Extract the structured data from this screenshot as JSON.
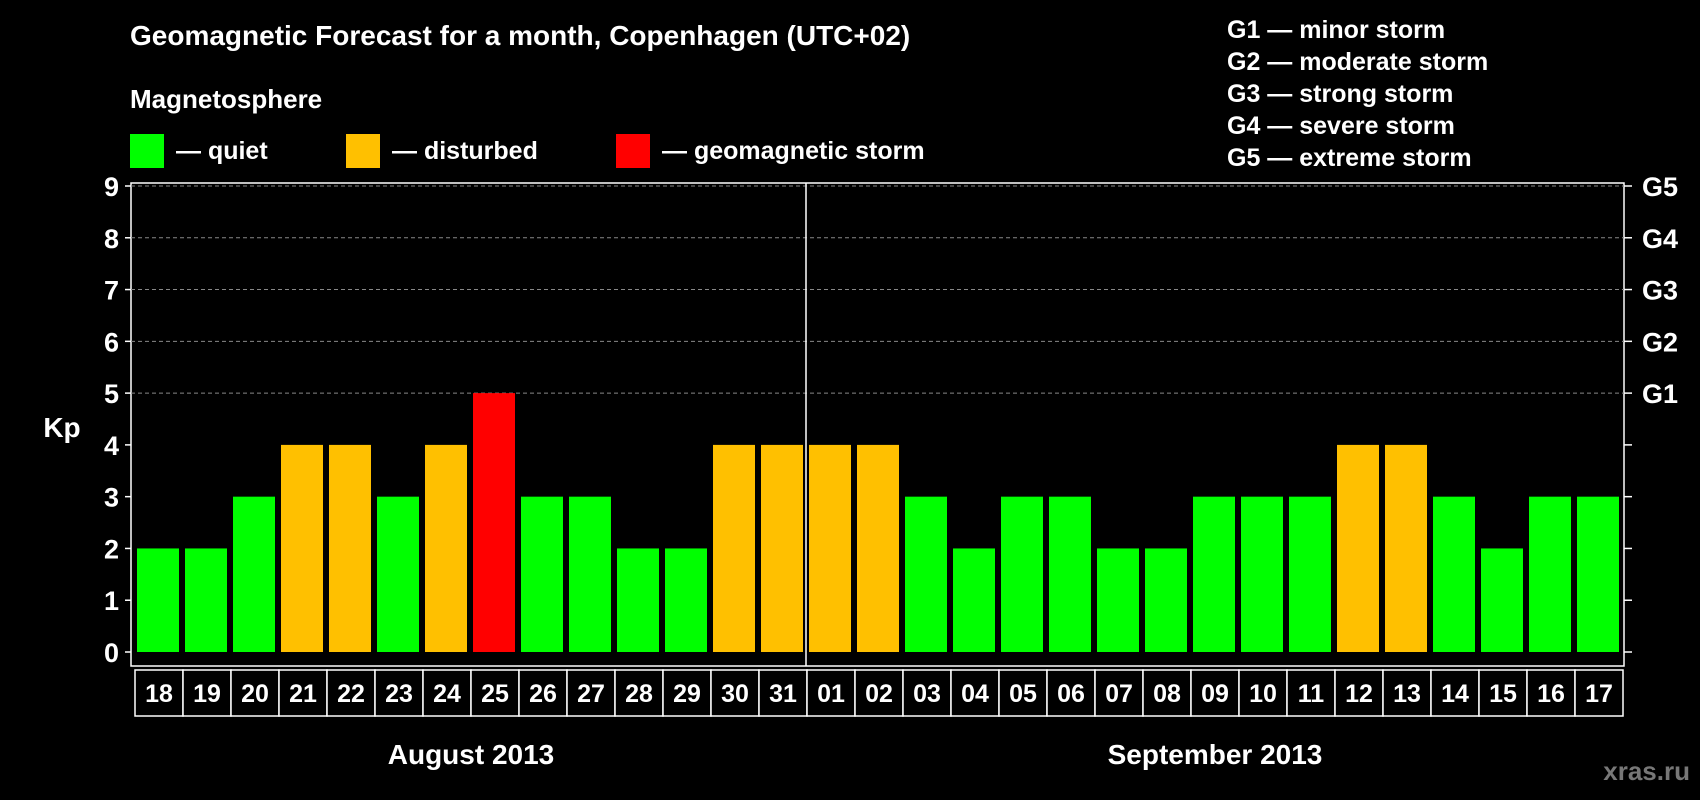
{
  "title": "Geomagnetic Forecast for a month, Copenhagen (UTC+02)",
  "legend": {
    "heading": "Magnetosphere",
    "items": [
      {
        "label": "— quiet",
        "color": "#00ff00"
      },
      {
        "label": "— disturbed",
        "color": "#ffc000"
      },
      {
        "label": "— geomagnetic storm",
        "color": "#ff0000"
      }
    ]
  },
  "g_scale_legend": [
    "G1 — minor storm",
    "G2 — moderate storm",
    "G3 — strong storm",
    "G4 — severe storm",
    "G5 — extreme storm"
  ],
  "watermark": "xras.ru",
  "chart_data": {
    "type": "bar",
    "ylabel": "Kp",
    "ylim": [
      0,
      9
    ],
    "yticks": [
      "0",
      "1",
      "2",
      "3",
      "4",
      "5",
      "6",
      "7",
      "8",
      "9"
    ],
    "right_ticks": [
      {
        "kp": 5,
        "label": "G1"
      },
      {
        "kp": 6,
        "label": "G2"
      },
      {
        "kp": 7,
        "label": "G3"
      },
      {
        "kp": 8,
        "label": "G4"
      },
      {
        "kp": 9,
        "label": "G5"
      }
    ],
    "categories": [
      "18",
      "19",
      "20",
      "21",
      "22",
      "23",
      "24",
      "25",
      "26",
      "27",
      "28",
      "29",
      "30",
      "31",
      "01",
      "02",
      "03",
      "04",
      "05",
      "06",
      "07",
      "08",
      "09",
      "10",
      "11",
      "12",
      "13",
      "14",
      "15",
      "16",
      "17"
    ],
    "values": [
      2,
      2,
      3,
      4,
      4,
      3,
      4,
      5,
      3,
      3,
      2,
      2,
      4,
      4,
      4,
      4,
      3,
      2,
      3,
      3,
      2,
      2,
      3,
      3,
      3,
      4,
      4,
      3,
      2,
      3,
      3
    ],
    "months": [
      {
        "label": "August 2013",
        "start_index": 0,
        "end_index": 13
      },
      {
        "label": "September 2013",
        "start_index": 14,
        "end_index": 30
      }
    ],
    "color_rule": {
      "quiet_max": 3,
      "disturbed": 4,
      "storm_min": 5
    },
    "colors": {
      "quiet": "#00ff00",
      "disturbed": "#ffc000",
      "storm": "#ff0000"
    },
    "grid": "dashed at Kp 5–9"
  }
}
